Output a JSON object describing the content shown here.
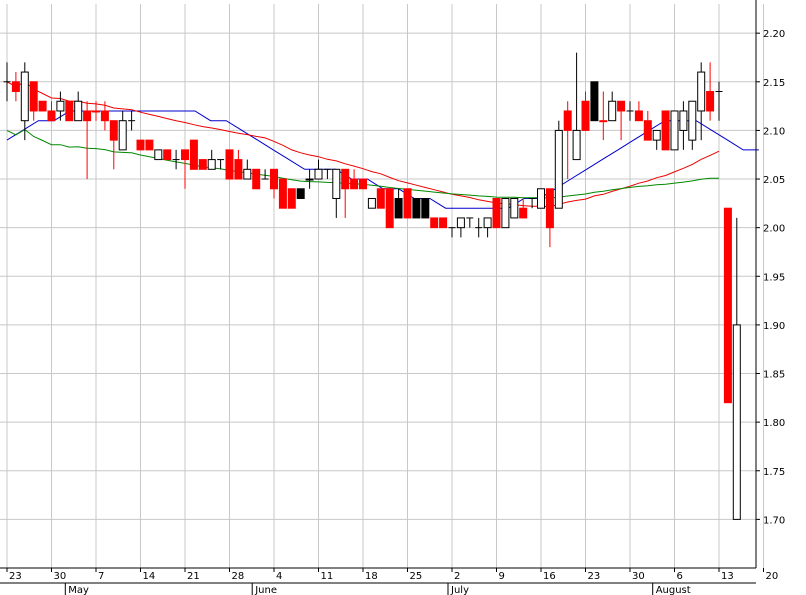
{
  "chart_data": {
    "type": "candlestick",
    "title": "",
    "xlabel": "",
    "ylabel": "",
    "ylim": [
      1.65,
      2.23
    ],
    "y_ticks": [
      "2.20",
      "2.15",
      "2.10",
      "2.05",
      "2.00",
      "1.95",
      "1.90",
      "1.85",
      "1.80",
      "1.75",
      "1.70"
    ],
    "y_tick_values": [
      2.2,
      2.15,
      2.1,
      2.05,
      2.0,
      1.95,
      1.9,
      1.85,
      1.8,
      1.75,
      1.7
    ],
    "x_ticks": [
      {
        "label": "23",
        "index": 0
      },
      {
        "label": "30",
        "index": 5
      },
      {
        "label": "7",
        "index": 10
      },
      {
        "label": "14",
        "index": 15
      },
      {
        "label": "21",
        "index": 20
      },
      {
        "label": "28",
        "index": 25
      },
      {
        "label": "4",
        "index": 30
      },
      {
        "label": "11",
        "index": 35
      },
      {
        "label": "18",
        "index": 40
      },
      {
        "label": "25",
        "index": 45
      },
      {
        "label": "2",
        "index": 50
      },
      {
        "label": "9",
        "index": 55
      },
      {
        "label": "16",
        "index": 60
      },
      {
        "label": "23",
        "index": 65
      },
      {
        "label": "30",
        "index": 70
      },
      {
        "label": "6",
        "index": 75
      },
      {
        "label": "13",
        "index": 80
      },
      {
        "label": "20",
        "index": 85
      }
    ],
    "months": [
      {
        "label": "May",
        "index": 7
      },
      {
        "label": "June",
        "index": 28
      },
      {
        "label": "July",
        "index": 50
      },
      {
        "label": "August",
        "index": 73
      }
    ],
    "grid": true,
    "colors": {
      "up": "#ffffff",
      "up_border": "#000000",
      "down": "#ff0000",
      "down_border": "#ff0000",
      "down_black": "#000000",
      "ma_short": "#0000cc",
      "ma_mid": "#ee0000",
      "ma_long": "#008800",
      "grid": "#c8c8c8",
      "axis": "#000000"
    },
    "candles": [
      {
        "o": 2.15,
        "h": 2.17,
        "l": 2.13,
        "c": 2.15,
        "k": "doji"
      },
      {
        "o": 2.15,
        "h": 2.16,
        "l": 2.13,
        "c": 2.14,
        "k": "down"
      },
      {
        "o": 2.11,
        "h": 2.17,
        "l": 2.09,
        "c": 2.16,
        "k": "up"
      },
      {
        "o": 2.15,
        "h": 2.15,
        "l": 2.11,
        "c": 2.12,
        "k": "down"
      },
      {
        "o": 2.13,
        "h": 2.13,
        "l": 2.12,
        "c": 2.12,
        "k": "down"
      },
      {
        "o": 2.12,
        "h": 2.13,
        "l": 2.11,
        "c": 2.11,
        "k": "down"
      },
      {
        "o": 2.12,
        "h": 2.14,
        "l": 2.11,
        "c": 2.13,
        "k": "up"
      },
      {
        "o": 2.13,
        "h": 2.13,
        "l": 2.11,
        "c": 2.11,
        "k": "down"
      },
      {
        "o": 2.11,
        "h": 2.14,
        "l": 2.11,
        "c": 2.13,
        "k": "up"
      },
      {
        "o": 2.12,
        "h": 2.13,
        "l": 2.05,
        "c": 2.11,
        "k": "down"
      },
      {
        "o": 2.12,
        "h": 2.13,
        "l": 2.11,
        "c": 2.12,
        "k": "down"
      },
      {
        "o": 2.12,
        "h": 2.13,
        "l": 2.1,
        "c": 2.11,
        "k": "down"
      },
      {
        "o": 2.11,
        "h": 2.11,
        "l": 2.06,
        "c": 2.09,
        "k": "down"
      },
      {
        "o": 2.08,
        "h": 2.12,
        "l": 2.08,
        "c": 2.11,
        "k": "up"
      },
      {
        "o": 2.11,
        "h": 2.12,
        "l": 2.1,
        "c": 2.11,
        "k": "doji"
      },
      {
        "o": 2.09,
        "h": 2.09,
        "l": 2.08,
        "c": 2.08,
        "k": "down"
      },
      {
        "o": 2.09,
        "h": 2.09,
        "l": 2.08,
        "c": 2.08,
        "k": "down"
      },
      {
        "o": 2.07,
        "h": 2.08,
        "l": 2.07,
        "c": 2.08,
        "k": "up"
      },
      {
        "o": 2.08,
        "h": 2.08,
        "l": 2.07,
        "c": 2.07,
        "k": "down"
      },
      {
        "o": 2.07,
        "h": 2.08,
        "l": 2.06,
        "c": 2.07,
        "k": "doji"
      },
      {
        "o": 2.08,
        "h": 2.08,
        "l": 2.04,
        "c": 2.07,
        "k": "down"
      },
      {
        "o": 2.09,
        "h": 2.09,
        "l": 2.06,
        "c": 2.06,
        "k": "down"
      },
      {
        "o": 2.07,
        "h": 2.07,
        "l": 2.06,
        "c": 2.06,
        "k": "down"
      },
      {
        "o": 2.06,
        "h": 2.08,
        "l": 2.06,
        "c": 2.07,
        "k": "up"
      },
      {
        "o": 2.07,
        "h": 2.07,
        "l": 2.06,
        "c": 2.06,
        "k": "doji"
      },
      {
        "o": 2.08,
        "h": 2.08,
        "l": 2.05,
        "c": 2.05,
        "k": "down"
      },
      {
        "o": 2.07,
        "h": 2.08,
        "l": 2.05,
        "c": 2.05,
        "k": "down"
      },
      {
        "o": 2.05,
        "h": 2.07,
        "l": 2.05,
        "c": 2.06,
        "k": "up"
      },
      {
        "o": 2.06,
        "h": 2.06,
        "l": 2.04,
        "c": 2.04,
        "k": "down"
      },
      {
        "o": 2.05,
        "h": 2.06,
        "l": 2.05,
        "c": 2.05,
        "k": "doji"
      },
      {
        "o": 2.06,
        "h": 2.06,
        "l": 2.03,
        "c": 2.04,
        "k": "down"
      },
      {
        "o": 2.05,
        "h": 2.05,
        "l": 2.02,
        "c": 2.02,
        "k": "down"
      },
      {
        "o": 2.04,
        "h": 2.04,
        "l": 2.02,
        "c": 2.02,
        "k": "down"
      },
      {
        "o": 2.04,
        "h": 2.04,
        "l": 2.03,
        "c": 2.03,
        "k": "black"
      },
      {
        "o": 2.05,
        "h": 2.06,
        "l": 2.04,
        "c": 2.05,
        "k": "up"
      },
      {
        "o": 2.05,
        "h": 2.07,
        "l": 2.05,
        "c": 2.06,
        "k": "up"
      },
      {
        "o": 2.06,
        "h": 2.06,
        "l": 2.05,
        "c": 2.05,
        "k": "doji"
      },
      {
        "o": 2.03,
        "h": 2.06,
        "l": 2.01,
        "c": 2.06,
        "k": "up"
      },
      {
        "o": 2.06,
        "h": 2.06,
        "l": 2.01,
        "c": 2.04,
        "k": "down"
      },
      {
        "o": 2.05,
        "h": 2.06,
        "l": 2.04,
        "c": 2.04,
        "k": "down"
      },
      {
        "o": 2.05,
        "h": 2.05,
        "l": 2.04,
        "c": 2.04,
        "k": "down"
      },
      {
        "o": 2.03,
        "h": 2.03,
        "l": 2.02,
        "c": 2.02,
        "k": "up"
      },
      {
        "o": 2.04,
        "h": 2.04,
        "l": 2.02,
        "c": 2.02,
        "k": "down"
      },
      {
        "o": 2.04,
        "h": 2.04,
        "l": 2.0,
        "c": 2.0,
        "k": "down"
      },
      {
        "o": 2.03,
        "h": 2.04,
        "l": 2.01,
        "c": 2.01,
        "k": "black"
      },
      {
        "o": 2.04,
        "h": 2.04,
        "l": 2.01,
        "c": 2.01,
        "k": "down"
      },
      {
        "o": 2.03,
        "h": 2.03,
        "l": 2.01,
        "c": 2.01,
        "k": "black"
      },
      {
        "o": 2.03,
        "h": 2.03,
        "l": 2.01,
        "c": 2.01,
        "k": "black"
      },
      {
        "o": 2.01,
        "h": 2.01,
        "l": 2.0,
        "c": 2.0,
        "k": "down"
      },
      {
        "o": 2.01,
        "h": 2.01,
        "l": 2.0,
        "c": 2.0,
        "k": "down"
      },
      {
        "o": 2.0,
        "h": 2.0,
        "l": 1.99,
        "c": 2.0,
        "k": "doji"
      },
      {
        "o": 2.0,
        "h": 2.01,
        "l": 1.99,
        "c": 2.01,
        "k": "up"
      },
      {
        "o": 2.01,
        "h": 2.01,
        "l": 2.0,
        "c": 2.01,
        "k": "doji"
      },
      {
        "o": 2.0,
        "h": 2.01,
        "l": 1.99,
        "c": 2.0,
        "k": "doji"
      },
      {
        "o": 2.0,
        "h": 2.01,
        "l": 1.99,
        "c": 2.01,
        "k": "up"
      },
      {
        "o": 2.03,
        "h": 2.03,
        "l": 2.0,
        "c": 2.0,
        "k": "down"
      },
      {
        "o": 2.0,
        "h": 2.03,
        "l": 2.0,
        "c": 2.03,
        "k": "up"
      },
      {
        "o": 2.01,
        "h": 2.03,
        "l": 2.01,
        "c": 2.03,
        "k": "up"
      },
      {
        "o": 2.02,
        "h": 2.03,
        "l": 2.01,
        "c": 2.01,
        "k": "down"
      },
      {
        "o": 2.03,
        "h": 2.03,
        "l": 2.02,
        "c": 2.03,
        "k": "doji"
      },
      {
        "o": 2.02,
        "h": 2.04,
        "l": 2.02,
        "c": 2.04,
        "k": "up"
      },
      {
        "o": 2.04,
        "h": 2.04,
        "l": 1.98,
        "c": 2.0,
        "k": "down"
      },
      {
        "o": 2.02,
        "h": 2.11,
        "l": 2.02,
        "c": 2.1,
        "k": "up"
      },
      {
        "o": 2.12,
        "h": 2.13,
        "l": 2.05,
        "c": 2.1,
        "k": "down"
      },
      {
        "o": 2.07,
        "h": 2.18,
        "l": 2.07,
        "c": 2.1,
        "k": "up"
      },
      {
        "o": 2.13,
        "h": 2.14,
        "l": 2.1,
        "c": 2.1,
        "k": "down"
      },
      {
        "o": 2.11,
        "h": 2.15,
        "l": 2.11,
        "c": 2.15,
        "k": "black"
      },
      {
        "o": 2.11,
        "h": 2.14,
        "l": 2.09,
        "c": 2.11,
        "k": "down"
      },
      {
        "o": 2.11,
        "h": 2.14,
        "l": 2.11,
        "c": 2.13,
        "k": "up"
      },
      {
        "o": 2.13,
        "h": 2.13,
        "l": 2.09,
        "c": 2.12,
        "k": "down"
      },
      {
        "o": 2.12,
        "h": 2.13,
        "l": 2.11,
        "c": 2.12,
        "k": "doji"
      },
      {
        "o": 2.12,
        "h": 2.13,
        "l": 2.11,
        "c": 2.11,
        "k": "down"
      },
      {
        "o": 2.11,
        "h": 2.12,
        "l": 2.09,
        "c": 2.09,
        "k": "down"
      },
      {
        "o": 2.09,
        "h": 2.1,
        "l": 2.08,
        "c": 2.1,
        "k": "up"
      },
      {
        "o": 2.12,
        "h": 2.12,
        "l": 2.08,
        "c": 2.08,
        "k": "down"
      },
      {
        "o": 2.08,
        "h": 2.12,
        "l": 2.08,
        "c": 2.12,
        "k": "up"
      },
      {
        "o": 2.1,
        "h": 2.13,
        "l": 2.08,
        "c": 2.12,
        "k": "up"
      },
      {
        "o": 2.09,
        "h": 2.13,
        "l": 2.08,
        "c": 2.13,
        "k": "up"
      },
      {
        "o": 2.12,
        "h": 2.17,
        "l": 2.09,
        "c": 2.16,
        "k": "up"
      },
      {
        "o": 2.14,
        "h": 2.17,
        "l": 2.11,
        "c": 2.12,
        "k": "down"
      },
      {
        "o": 2.14,
        "h": 2.15,
        "l": 2.11,
        "c": 2.13,
        "k": "doji"
      }
    ],
    "ma_short": [
      2.09,
      2.1,
      2.11,
      2.11,
      2.12,
      2.12,
      2.12,
      2.12,
      2.12,
      2.12,
      2.12,
      2.12,
      2.12,
      2.11,
      2.11,
      2.1,
      2.09,
      2.08,
      2.07,
      2.06,
      2.06,
      2.06,
      2.05,
      2.05,
      2.04,
      2.04,
      2.03,
      2.03,
      2.02,
      2.02,
      2.02,
      2.02,
      2.02,
      2.03,
      2.03,
      2.04,
      2.05,
      2.06,
      2.07,
      2.08,
      2.09,
      2.1,
      2.11,
      2.11,
      2.11,
      2.1,
      2.09,
      2.08,
      2.08
    ],
    "ma_short_x": [
      0,
      2,
      4,
      6,
      8,
      10,
      12,
      14,
      16,
      18,
      20,
      22,
      24,
      26,
      28,
      30,
      32,
      34,
      36,
      38,
      40,
      42,
      44,
      46,
      48,
      50,
      52,
      54,
      56,
      58,
      60,
      62,
      64,
      66,
      68,
      70,
      72,
      74,
      76,
      78,
      80,
      82,
      84,
      86,
      88,
      90,
      92,
      94,
      96
    ]
  }
}
